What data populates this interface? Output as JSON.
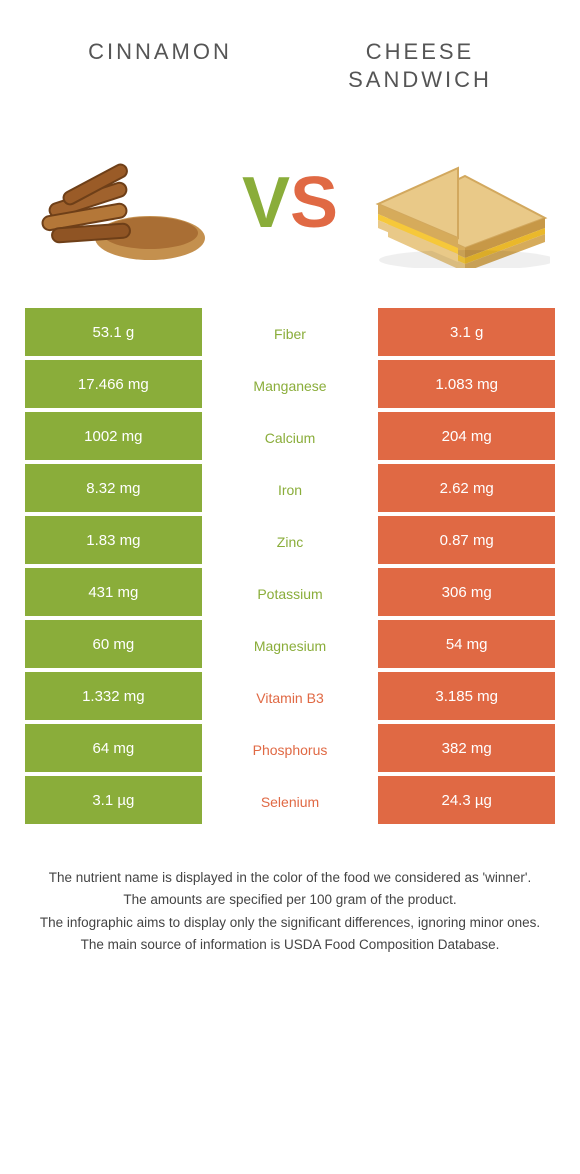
{
  "colors": {
    "left": "#8aad3a",
    "right": "#e06944",
    "background": "#ffffff",
    "text": "#333333"
  },
  "header": {
    "left_title": "Cinnamon",
    "right_title": "Cheese sandwich"
  },
  "hero": {
    "vs_v": "V",
    "vs_s": "S",
    "left_alt": "cinnamon",
    "right_alt": "cheese-sandwich"
  },
  "rows": [
    {
      "nutrient": "Fiber",
      "left": "53.1 g",
      "right": "3.1 g",
      "winner": "left"
    },
    {
      "nutrient": "Manganese",
      "left": "17.466 mg",
      "right": "1.083 mg",
      "winner": "left"
    },
    {
      "nutrient": "Calcium",
      "left": "1002 mg",
      "right": "204 mg",
      "winner": "left"
    },
    {
      "nutrient": "Iron",
      "left": "8.32 mg",
      "right": "2.62 mg",
      "winner": "left"
    },
    {
      "nutrient": "Zinc",
      "left": "1.83 mg",
      "right": "0.87 mg",
      "winner": "left"
    },
    {
      "nutrient": "Potassium",
      "left": "431 mg",
      "right": "306 mg",
      "winner": "left"
    },
    {
      "nutrient": "Magnesium",
      "left": "60 mg",
      "right": "54 mg",
      "winner": "left"
    },
    {
      "nutrient": "Vitamin B3",
      "left": "1.332 mg",
      "right": "3.185 mg",
      "winner": "right"
    },
    {
      "nutrient": "Phosphorus",
      "left": "64 mg",
      "right": "382 mg",
      "winner": "right"
    },
    {
      "nutrient": "Selenium",
      "left": "3.1 µg",
      "right": "24.3 µg",
      "winner": "right"
    }
  ],
  "footnotes": {
    "l1": "The nutrient name is displayed in the color of the food we considered as 'winner'.",
    "l2": "The amounts are specified per 100 gram of the product.",
    "l3": "The infographic aims to display only the significant differences, ignoring minor ones.",
    "l4": "The main source of information is USDA Food Composition Database."
  }
}
